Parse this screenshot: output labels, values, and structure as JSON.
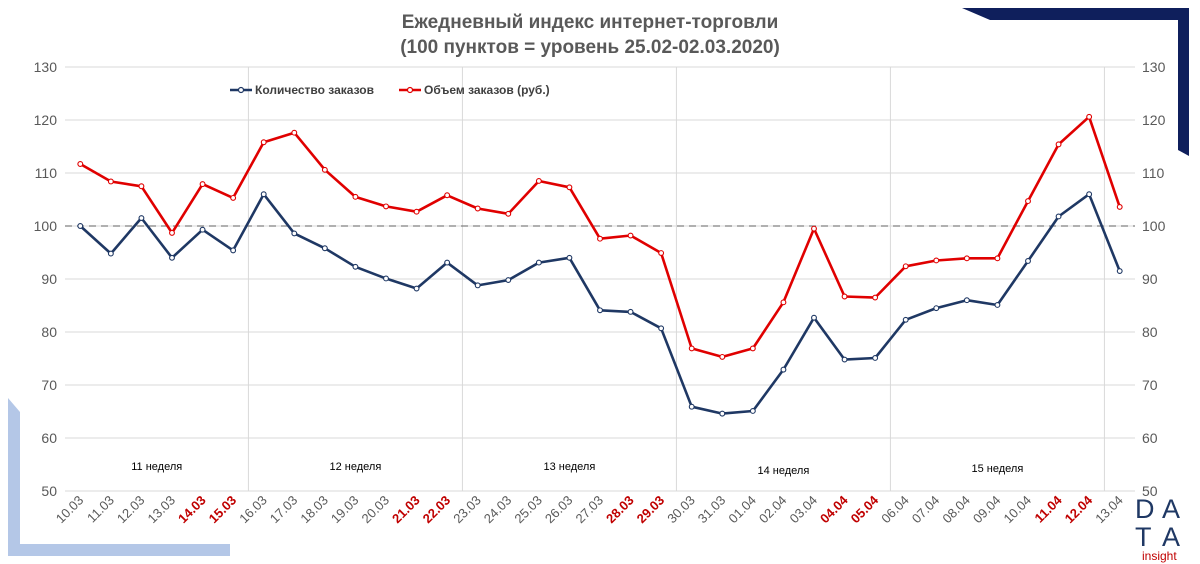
{
  "chart_data": {
    "type": "line",
    "title": "Ежедневный индекс интернет-торговли",
    "subtitle": "(100 пунктов = уровень 25.02-02.03.2020)",
    "ylim": [
      50,
      130
    ],
    "yticks": [
      50,
      60,
      70,
      80,
      90,
      100,
      110,
      120,
      130
    ],
    "reference_line": 100,
    "grid": true,
    "legend_position": "top-left",
    "categories": [
      "10.03",
      "11.03",
      "12.03",
      "13.03",
      "14.03",
      "15.03",
      "16.03",
      "17.03",
      "18.03",
      "19.03",
      "20.03",
      "21.03",
      "22.03",
      "23.03",
      "24.03",
      "25.03",
      "26.03",
      "27.03",
      "28.03",
      "29.03",
      "30.03",
      "31.03",
      "01.04",
      "02.04",
      "03.04",
      "04.04",
      "05.04",
      "06.04",
      "07.04",
      "08.04",
      "09.04",
      "10.04",
      "11.04",
      "12.04",
      "13.04"
    ],
    "highlighted_categories": [
      "14.03",
      "15.03",
      "21.03",
      "22.03",
      "28.03",
      "29.03",
      "04.04",
      "05.04",
      "11.04",
      "12.04"
    ],
    "series": [
      {
        "name": "Количество заказов",
        "color": "#1f3864",
        "values": [
          100,
          94.8,
          101.5,
          94,
          99.3,
          95.4,
          106,
          98.6,
          95.8,
          92.3,
          90.1,
          88.2,
          93.1,
          88.8,
          89.8,
          93.1,
          94,
          84.1,
          83.8,
          80.7,
          65.9,
          64.6,
          65.1,
          72.9,
          82.7,
          74.8,
          75.1,
          82.3,
          84.5,
          86,
          85.1,
          93.4,
          101.8,
          106,
          91.5
        ]
      },
      {
        "name": "Объем заказов (руб.)",
        "color": "#e00000",
        "values": [
          111.7,
          108.4,
          107.5,
          98.7,
          107.9,
          105.3,
          115.8,
          117.6,
          110.6,
          105.5,
          103.7,
          102.7,
          105.8,
          103.3,
          102.3,
          108.5,
          107.3,
          97.6,
          98.2,
          94.9,
          76.9,
          75.3,
          76.9,
          85.6,
          99.5,
          86.7,
          86.5,
          92.4,
          93.5,
          93.9,
          93.9,
          104.7,
          115.4,
          120.6,
          103.6
        ]
      }
    ],
    "week_labels": [
      {
        "label": "11 неделя",
        "from": 0,
        "to": 5
      },
      {
        "label": "12 неделя",
        "from": 6,
        "to": 12
      },
      {
        "label": "13 неделя",
        "from": 13,
        "to": 19
      },
      {
        "label": "14 неделя",
        "from": 20,
        "to": 26
      },
      {
        "label": "15 неделя",
        "from": 27,
        "to": 33
      }
    ]
  },
  "logo": {
    "letters": [
      "D",
      "A",
      "T",
      "A"
    ],
    "subtitle": "insight"
  },
  "colors": {
    "axis_text": "#595959",
    "highlight_text": "#c00000",
    "decor_navy": "#0f1f5c",
    "decor_light_blue": "#b4c7e7"
  }
}
